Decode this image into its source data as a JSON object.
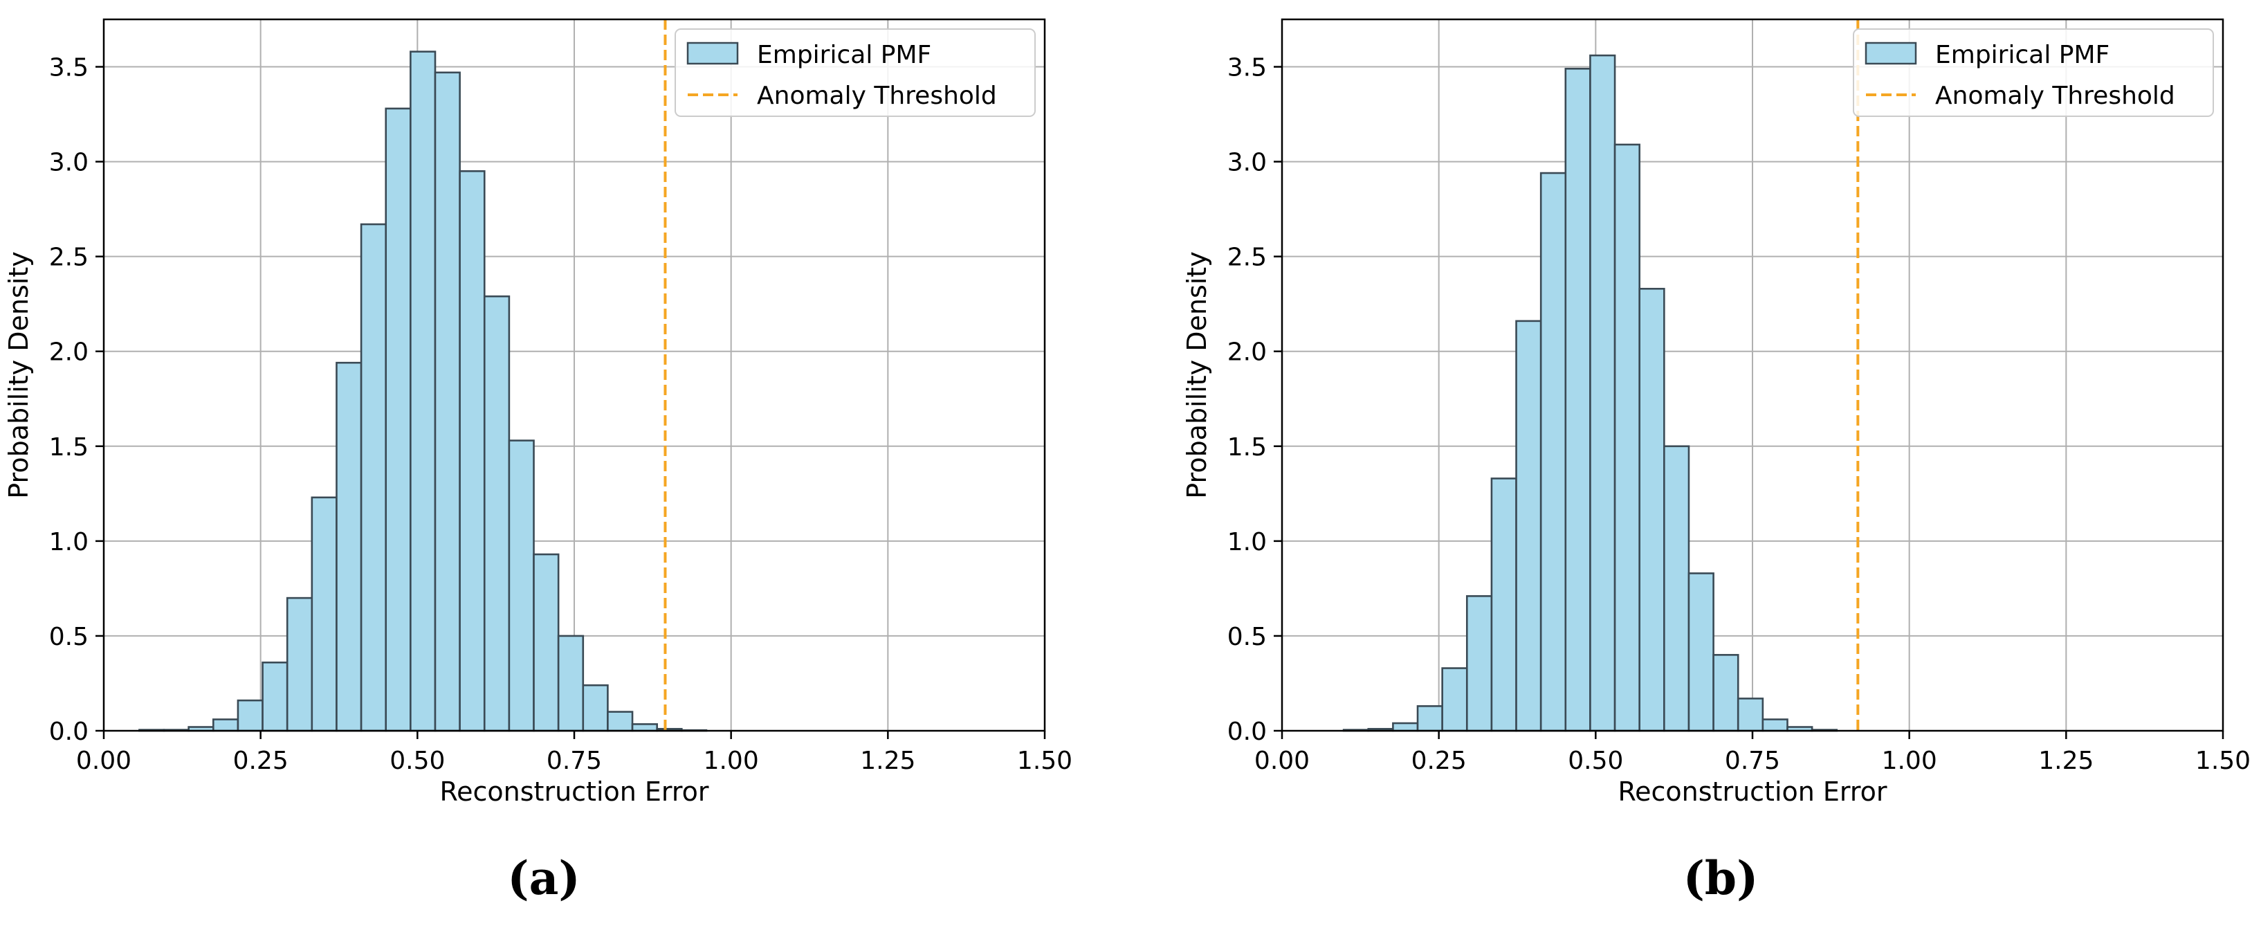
{
  "chart_data": [
    {
      "panel_label": "(a)",
      "type": "bar",
      "xlabel": "Reconstruction Error",
      "ylabel": "Probability Density",
      "xlim": [
        0.0,
        1.5
      ],
      "ylim": [
        0.0,
        3.75
      ],
      "xticks": [
        "0.00",
        "0.25",
        "0.50",
        "0.75",
        "1.00",
        "1.25",
        "1.50"
      ],
      "yticks": [
        "0.0",
        "0.5",
        "1.0",
        "1.5",
        "2.0",
        "2.5",
        "3.0",
        "3.5"
      ],
      "grid": true,
      "legend_position": "top-right",
      "series": [
        {
          "name": "Empirical PMF",
          "kind": "histogram",
          "color": "#a8d9ec",
          "edge_color": "#3a4a55",
          "bin_width": 0.0393,
          "bin_edges_start": 0.0567,
          "values": [
            0.005,
            0.005,
            0.02,
            0.06,
            0.16,
            0.36,
            0.7,
            1.23,
            1.94,
            2.67,
            3.28,
            3.58,
            3.47,
            2.95,
            2.29,
            1.53,
            0.93,
            0.5,
            0.24,
            0.1,
            0.035,
            0.01,
            0.003
          ]
        },
        {
          "name": "Anomaly Threshold",
          "kind": "vline",
          "color": "#f5a623",
          "x": 0.895
        }
      ]
    },
    {
      "panel_label": "(b)",
      "type": "bar",
      "xlabel": "Reconstruction Error",
      "ylabel": "Probability Density",
      "xlim": [
        0.0,
        1.5
      ],
      "ylim": [
        0.0,
        3.75
      ],
      "xticks": [
        "0.00",
        "0.25",
        "0.50",
        "0.75",
        "1.00",
        "1.25",
        "1.50"
      ],
      "yticks": [
        "0.0",
        "0.5",
        "1.0",
        "1.5",
        "2.0",
        "2.5",
        "3.0",
        "3.5"
      ],
      "grid": true,
      "legend_position": "top-right",
      "series": [
        {
          "name": "Empirical PMF",
          "kind": "histogram",
          "color": "#a8d9ec",
          "edge_color": "#3a4a55",
          "bin_width": 0.0393,
          "bin_edges_start": 0.0983,
          "values": [
            0.005,
            0.01,
            0.04,
            0.13,
            0.33,
            0.71,
            1.33,
            2.16,
            2.94,
            3.49,
            3.56,
            3.09,
            2.33,
            1.5,
            0.83,
            0.4,
            0.17,
            0.06,
            0.02,
            0.005
          ]
        },
        {
          "name": "Anomaly Threshold",
          "kind": "vline",
          "color": "#f5a623",
          "x": 0.918
        }
      ]
    }
  ]
}
